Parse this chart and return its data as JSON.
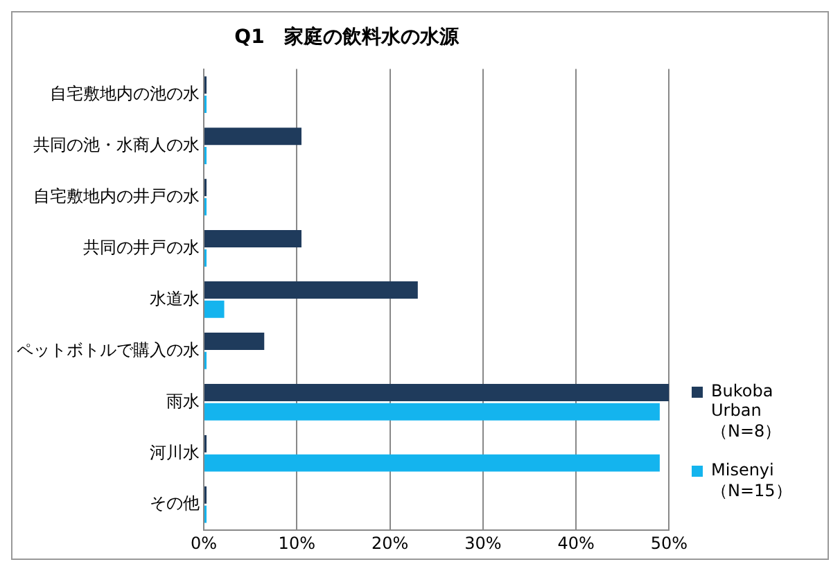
{
  "chart_data": {
    "type": "bar",
    "orientation": "horizontal",
    "title": "Q1　家庭の飲料水の水源",
    "categories": [
      "自宅敷地内の池の水",
      "共同の池・水商人の水",
      "自宅敷地内の井戸の水",
      "共同の井戸の水",
      "水道水",
      "ペットボトルで購入の水",
      "雨水",
      "河川水",
      "その他"
    ],
    "series": [
      {
        "name": "Bukoba Urban（N=8）",
        "color": "#1f3b5c",
        "values": [
          0,
          10.5,
          0,
          10.5,
          23,
          6.5,
          50,
          0,
          0
        ]
      },
      {
        "name": "Misenyi（N=15）",
        "color": "#14b4ee",
        "values": [
          0,
          0,
          0,
          0,
          2.2,
          0,
          49,
          49,
          0
        ]
      }
    ],
    "xlim": [
      0,
      50
    ],
    "xticks": [
      {
        "value": 0,
        "label": "0%"
      },
      {
        "value": 10,
        "label": "10%"
      },
      {
        "value": 20,
        "label": "20%"
      },
      {
        "value": 30,
        "label": "30%"
      },
      {
        "value": 40,
        "label": "40%"
      },
      {
        "value": 50,
        "label": "50%"
      }
    ],
    "grid": "x",
    "legend": "right"
  }
}
